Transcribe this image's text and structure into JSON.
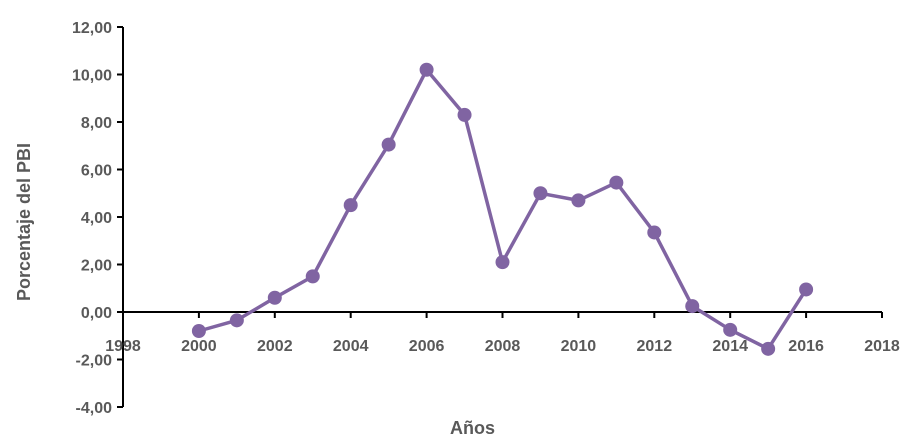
{
  "chart_data": {
    "type": "line",
    "title": "",
    "xlabel": "Años",
    "ylabel": "Porcentaje del PBI",
    "xlim": [
      1998,
      2018
    ],
    "ylim": [
      -4,
      12
    ],
    "x_ticks": [
      1998,
      2000,
      2002,
      2004,
      2006,
      2008,
      2010,
      2012,
      2014,
      2016,
      2018
    ],
    "y_ticks": [
      -4,
      -2,
      0,
      2,
      4,
      6,
      8,
      10,
      12
    ],
    "y_tick_labels": [
      "-4,00",
      "-2,00",
      "0,00",
      "2,00",
      "4,00",
      "6,00",
      "8,00",
      "10,00",
      "12,00"
    ],
    "grid": false,
    "legend": "none",
    "series": [
      {
        "color": "#8064a2",
        "x": [
          2000,
          2001,
          2002,
          2003,
          2004,
          2005,
          2006,
          2007,
          2008,
          2009,
          2010,
          2011,
          2012,
          2013,
          2014,
          2015,
          2016
        ],
        "values": [
          -0.8,
          -0.35,
          0.6,
          1.5,
          4.5,
          7.05,
          10.2,
          8.3,
          2.1,
          5.0,
          4.7,
          5.45,
          3.35,
          0.25,
          -0.75,
          -1.55,
          0.95
        ]
      }
    ]
  }
}
